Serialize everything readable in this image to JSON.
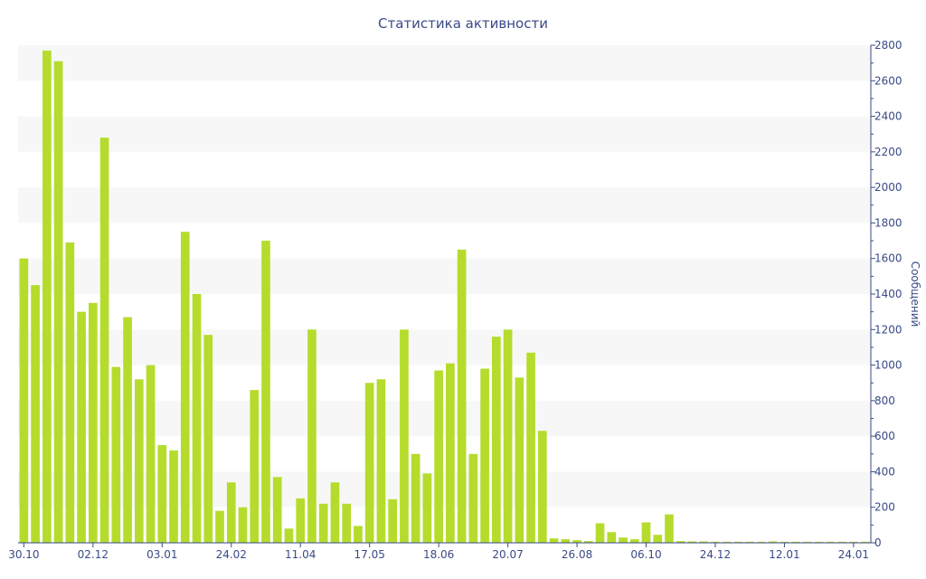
{
  "chart_data": {
    "type": "bar",
    "title": "Статистика активности",
    "xlabel": "",
    "ylabel": "Сообщений",
    "y_axis_position": "right",
    "ylim": [
      0,
      2800
    ],
    "y_ticks": [
      0,
      200,
      400,
      600,
      800,
      1000,
      1200,
      1400,
      1600,
      1800,
      2000,
      2200,
      2400,
      2600,
      2800
    ],
    "grid": "alternating horizontal bands",
    "legend": "none",
    "bar_color": "#b5dc2c",
    "band_color": "#f7f7f7",
    "text_color": "#3a4a86",
    "x_tick_labels": [
      {
        "index": 0,
        "label": "30.10"
      },
      {
        "index": 6,
        "label": "02.12"
      },
      {
        "index": 12,
        "label": "03.01"
      },
      {
        "index": 18,
        "label": "24.02"
      },
      {
        "index": 24,
        "label": "11.04"
      },
      {
        "index": 30,
        "label": "17.05"
      },
      {
        "index": 36,
        "label": "18.06"
      },
      {
        "index": 42,
        "label": "20.07"
      },
      {
        "index": 48,
        "label": "26.08"
      },
      {
        "index": 54,
        "label": "06.10"
      },
      {
        "index": 60,
        "label": "24.12"
      },
      {
        "index": 66,
        "label": "12.01"
      },
      {
        "index": 72,
        "label": "24.01"
      }
    ],
    "values": [
      1600,
      1450,
      2770,
      2710,
      1690,
      1300,
      1350,
      2280,
      990,
      1270,
      920,
      1000,
      550,
      520,
      1750,
      1400,
      1170,
      180,
      340,
      200,
      860,
      1700,
      370,
      80,
      250,
      1200,
      220,
      340,
      220,
      95,
      900,
      920,
      245,
      1200,
      500,
      390,
      970,
      1010,
      1650,
      500,
      980,
      1160,
      1200,
      930,
      1070,
      630,
      25,
      20,
      15,
      10,
      110,
      60,
      30,
      20,
      115,
      45,
      160,
      10,
      8,
      8,
      6,
      6,
      6,
      6,
      6,
      8,
      6,
      6,
      6,
      6,
      6,
      6,
      6,
      6
    ]
  }
}
